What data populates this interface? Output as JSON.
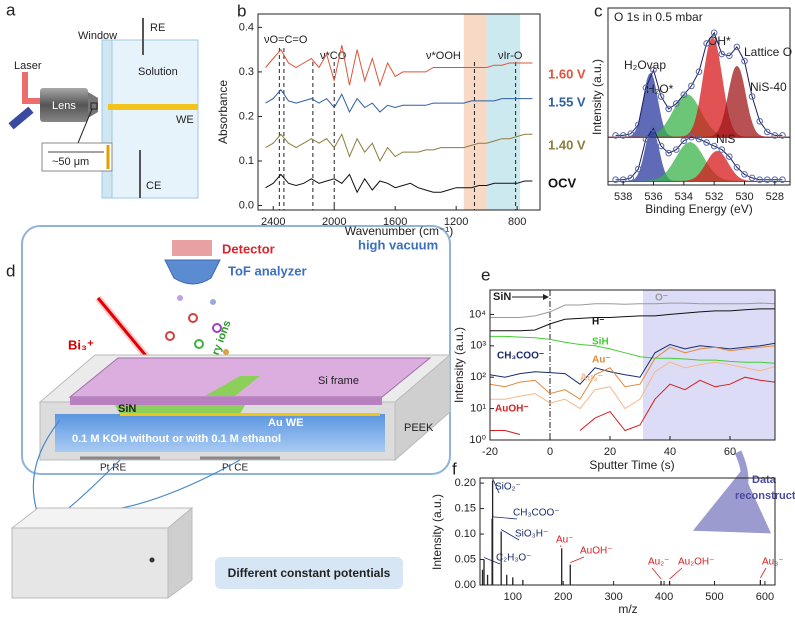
{
  "figure": {
    "a": {
      "label": "a",
      "laser": "Laser",
      "window": "Window",
      "re": "RE",
      "solution": "Solution",
      "lens": "Lens",
      "we": "WE",
      "scale": "~50 μm",
      "ce": "CE"
    },
    "d": {
      "label": "d",
      "detector": "Detector",
      "tof": "ToF analyzer",
      "vacuum": "high vacuum",
      "beam": "Bi₃⁺",
      "ions": "Secondary ions",
      "frame": "Si frame",
      "sin": "SiN",
      "we": "Au WE",
      "electrolyte": "0.1 M KOH without or with 0.1 M ethanol",
      "peek": "PEEK",
      "re": "Pt RE",
      "ce": "Pt CE",
      "potentials": "Different constant potentials"
    },
    "link": {
      "line1": "Data",
      "line2": "reconstruction"
    }
  },
  "chart_data": [
    {
      "type": "line",
      "panel": "b",
      "xlabel": "Wavenumber (cm⁻¹)",
      "ylabel": "Absorbance",
      "xlim": [
        2500,
        650
      ],
      "ylim": [
        -0.01,
        0.43
      ],
      "xticks": [
        2400,
        2000,
        1600,
        1200,
        800
      ],
      "yticks": [
        {
          "value": 0,
          "label": "0.0"
        },
        {
          "value": 0.1,
          "label": "0.1"
        },
        {
          "value": 0.2,
          "label": "0.2"
        },
        {
          "value": 0.3,
          "label": "0.3"
        },
        {
          "value": 0.4,
          "label": "0.4"
        }
      ],
      "x": [
        2450,
        2400,
        2350,
        2300,
        2250,
        2200,
        2150,
        2100,
        2050,
        2000,
        1950,
        1900,
        1850,
        1800,
        1750,
        1700,
        1650,
        1600,
        1550,
        1500,
        1450,
        1400,
        1350,
        1300,
        1250,
        1200,
        1150,
        1100,
        1050,
        1000,
        950,
        900,
        850,
        800,
        750,
        700
      ],
      "series": [
        {
          "name": "OCV",
          "color": "#111111",
          "values": [
            0.04,
            0.05,
            0.07,
            0.05,
            0.045,
            0.05,
            0.06,
            0.05,
            0.055,
            0.06,
            0.05,
            0.07,
            0.03,
            0.06,
            0.035,
            0.055,
            0.05,
            0.04,
            0.045,
            0.05,
            0.04,
            0.035,
            0.03,
            0.03,
            0.035,
            0.04,
            0.04,
            0.04,
            0.045,
            0.045,
            0.05,
            0.05,
            0.05,
            0.05,
            0.055,
            0.055
          ]
        },
        {
          "name": "1.40 V",
          "color": "#8b7d3a",
          "values": [
            0.13,
            0.14,
            0.16,
            0.14,
            0.13,
            0.14,
            0.15,
            0.14,
            0.15,
            0.13,
            0.16,
            0.11,
            0.15,
            0.12,
            0.14,
            0.1,
            0.13,
            0.11,
            0.12,
            0.12,
            0.12,
            0.125,
            0.125,
            0.13,
            0.13,
            0.13,
            0.13,
            0.135,
            0.14,
            0.14,
            0.145,
            0.15,
            0.15,
            0.155,
            0.16,
            0.16
          ]
        },
        {
          "name": "1.55 V",
          "color": "#2f5fa0",
          "values": [
            0.23,
            0.24,
            0.26,
            0.235,
            0.23,
            0.235,
            0.24,
            0.23,
            0.24,
            0.22,
            0.25,
            0.21,
            0.24,
            0.22,
            0.23,
            0.21,
            0.225,
            0.22,
            0.225,
            0.225,
            0.225,
            0.225,
            0.23,
            0.23,
            0.23,
            0.23,
            0.23,
            0.235,
            0.235,
            0.235,
            0.235,
            0.24,
            0.24,
            0.24,
            0.24,
            0.24
          ]
        },
        {
          "name": "1.60 V",
          "color": "#e0533a",
          "values": [
            0.31,
            0.33,
            0.35,
            0.32,
            0.31,
            0.32,
            0.33,
            0.31,
            0.34,
            0.28,
            0.36,
            0.27,
            0.35,
            0.28,
            0.33,
            0.27,
            0.32,
            0.29,
            0.3,
            0.3,
            0.3,
            0.3,
            0.31,
            0.31,
            0.31,
            0.31,
            0.31,
            0.31,
            0.31,
            0.31,
            0.315,
            0.315,
            0.32,
            0.32,
            0.32,
            0.32
          ]
        }
      ],
      "bands": [
        {
          "range": [
            1150,
            1000
          ],
          "color": "#f8d9c6"
        },
        {
          "range": [
            1000,
            780
          ],
          "color": "#cde9f0"
        }
      ],
      "markers": [
        2360,
        2330,
        2140,
        2000,
        1080,
        810
      ],
      "annotations": [
        "νO=C=O",
        "ν*CO",
        "ν*OOH",
        "νIr-O"
      ]
    },
    {
      "type": "xps",
      "panel": "c",
      "title": "O 1s in 0.5 mbar",
      "xlabel": "Binding Energy (eV)",
      "ylabel": "Intensity (a.u.)",
      "xlim": [
        539,
        527
      ],
      "ylim": [
        0,
        10
      ],
      "xticks": [
        538,
        536,
        534,
        532,
        530,
        528
      ],
      "x": [
        538.5,
        538,
        537.5,
        537,
        536.5,
        536,
        535.5,
        535,
        534.5,
        534,
        533.5,
        533,
        532.5,
        532,
        531.5,
        531,
        530.5,
        530,
        529.5,
        529,
        528.5,
        528,
        527.5
      ],
      "series": [
        {
          "name": "NiS-40",
          "color": "#5a6aa8",
          "baseline": 2.7,
          "values": [
            2.8,
            2.8,
            2.9,
            3.4,
            5.5,
            6.5,
            5.0,
            4.3,
            4.6,
            5.1,
            5.6,
            6.4,
            8.0,
            8.6,
            7.4,
            7.3,
            7.8,
            7.0,
            5.0,
            3.6,
            3.0,
            2.8,
            2.8
          ],
          "components": [
            {
              "name": "H₂Ovap",
              "center": 536.2,
              "height": 3.6,
              "width": 0.45,
              "color": "#2a3aa0"
            },
            {
              "name": "H₂O*",
              "center": 533.8,
              "height": 2.4,
              "width": 0.9,
              "color": "#3cb44b"
            },
            {
              "name": "OH*",
              "center": 532.1,
              "height": 5.6,
              "width": 0.6,
              "color": "#d7191c"
            },
            {
              "name": "Lattice O",
              "center": 530.5,
              "height": 4.0,
              "width": 0.55,
              "color": "#a0181c"
            }
          ]
        },
        {
          "name": "NiS",
          "color": "#5a6aa8",
          "baseline": 0.2,
          "values": [
            0.3,
            0.3,
            0.4,
            0.9,
            2.6,
            3.2,
            2.2,
            1.8,
            2.0,
            2.5,
            2.7,
            2.6,
            2.4,
            2.2,
            2.0,
            1.6,
            1.0,
            0.6,
            0.4,
            0.3,
            0.3,
            0.3,
            0.3
          ],
          "components": [
            {
              "center": 536.1,
              "height": 2.9,
              "width": 0.45,
              "color": "#2a3aa0"
            },
            {
              "center": 533.6,
              "height": 2.2,
              "width": 0.9,
              "color": "#3cb44b"
            },
            {
              "center": 531.8,
              "height": 1.7,
              "width": 0.7,
              "color": "#d7191c"
            }
          ]
        }
      ]
    },
    {
      "type": "line",
      "panel": "e",
      "xlabel": "Sputter Time (s)",
      "ylabel": "Intensity (a.u.)",
      "ylog": true,
      "xlim": [
        -20,
        75
      ],
      "ylim": [
        1,
        60000
      ],
      "xticks": [
        -20,
        0,
        20,
        40,
        60
      ],
      "yticks": [
        {
          "value": 1,
          "label": "10⁰"
        },
        {
          "value": 10,
          "label": "10¹"
        },
        {
          "value": 100,
          "label": "10²"
        },
        {
          "value": 1000,
          "label": "10³"
        },
        {
          "value": 10000,
          "label": "10⁴"
        }
      ],
      "x": [
        -20,
        -15,
        -10,
        -5,
        0,
        5,
        10,
        15,
        20,
        25,
        30,
        35,
        40,
        45,
        50,
        55,
        60,
        65,
        70,
        75
      ],
      "shade": [
        31,
        75
      ],
      "shade_color": "#dcdcf6",
      "region_label": "SiN",
      "series": [
        {
          "name": "O⁻",
          "color": "#9a9a9a",
          "values": [
            8000,
            8000,
            8000,
            9000,
            12000,
            20000,
            20000,
            22000,
            22000,
            21000,
            22000,
            22000,
            23000,
            23000,
            22000,
            22000,
            22000,
            22000,
            23000,
            22000
          ]
        },
        {
          "name": "H⁻",
          "color": "#111111",
          "values": [
            3000,
            3000,
            3000,
            3200,
            5000,
            7000,
            7500,
            8000,
            8000,
            8500,
            9000,
            9000,
            10000,
            11000,
            12000,
            13000,
            13000,
            14000,
            15000,
            15000
          ]
        },
        {
          "name": "SiH",
          "color": "#44cc33",
          "values": [
            2000,
            2000,
            1900,
            1800,
            1600,
            1300,
            1100,
            1000,
            800,
            600,
            450,
            400,
            400,
            380,
            350,
            350,
            320,
            300,
            300,
            280
          ]
        },
        {
          "name": "CH₃COO⁻",
          "color": "#1a2a6c",
          "values": [
            120,
            100,
            130,
            150,
            140,
            130,
            60,
            200,
            150,
            120,
            100,
            600,
            1100,
            800,
            1000,
            900,
            800,
            900,
            1000,
            1200
          ]
        },
        {
          "name": "Au⁻",
          "color": "#e08a3c",
          "values": [
            60,
            50,
            70,
            80,
            30,
            40,
            20,
            120,
            200,
            50,
            60,
            400,
            900,
            600,
            800,
            900,
            700,
            800,
            900,
            1000
          ]
        },
        {
          "name": "Au₂⁻",
          "color": "#f5b88a",
          "values": [
            20,
            20,
            25,
            30,
            15,
            20,
            10,
            40,
            50,
            10,
            20,
            150,
            300,
            200,
            250,
            300,
            250,
            200,
            160,
            220
          ]
        },
        {
          "name": "AuOH⁻",
          "color": "#d62020",
          "values": [
            2,
            2,
            1.5,
            null,
            1,
            null,
            2,
            5,
            8,
            2,
            3,
            20,
            60,
            40,
            80,
            50,
            60,
            100,
            80,
            70
          ]
        }
      ]
    },
    {
      "type": "stem",
      "panel": "f",
      "xlabel": "m/z",
      "ylabel": "Intensity (a.u.)",
      "color": "#222222",
      "xlim": [
        35,
        620
      ],
      "ylim": [
        0,
        0.21
      ],
      "xticks": [
        100,
        200,
        300,
        400,
        500,
        600
      ],
      "yticks": [
        {
          "value": 0,
          "label": "0.00"
        },
        {
          "value": 0.05,
          "label": "0.05"
        },
        {
          "value": 0.1,
          "label": "0.10"
        },
        {
          "value": 0.15,
          "label": "0.15"
        },
        {
          "value": 0.2,
          "label": "0.20"
        }
      ],
      "x": [
        40,
        43,
        50,
        59,
        60,
        77,
        88,
        100,
        120,
        197,
        214,
        394,
        411,
        591
      ],
      "values": [
        0.03,
        0.05,
        0.02,
        0.13,
        0.205,
        0.105,
        0.02,
        0.015,
        0.01,
        0.072,
        0.04,
        0.008,
        0.008,
        0.01
      ],
      "labels": [
        null,
        "C₂H₃O⁻",
        null,
        "CH₃COO⁻",
        "SiO₂⁻",
        "SiO₃H⁻",
        null,
        null,
        null,
        "Au⁻",
        "AuOH⁻",
        "Au₂⁻",
        "Au₂OH⁻",
        "Au₃⁻"
      ],
      "label_colors": [
        null,
        "#1a2a6c",
        null,
        "#1a2a6c",
        "#1a2a6c",
        "#1a2a6c",
        null,
        null,
        null,
        "#d62020",
        "#d62020",
        "#d62020",
        "#d62020",
        "#d62020"
      ]
    }
  ]
}
